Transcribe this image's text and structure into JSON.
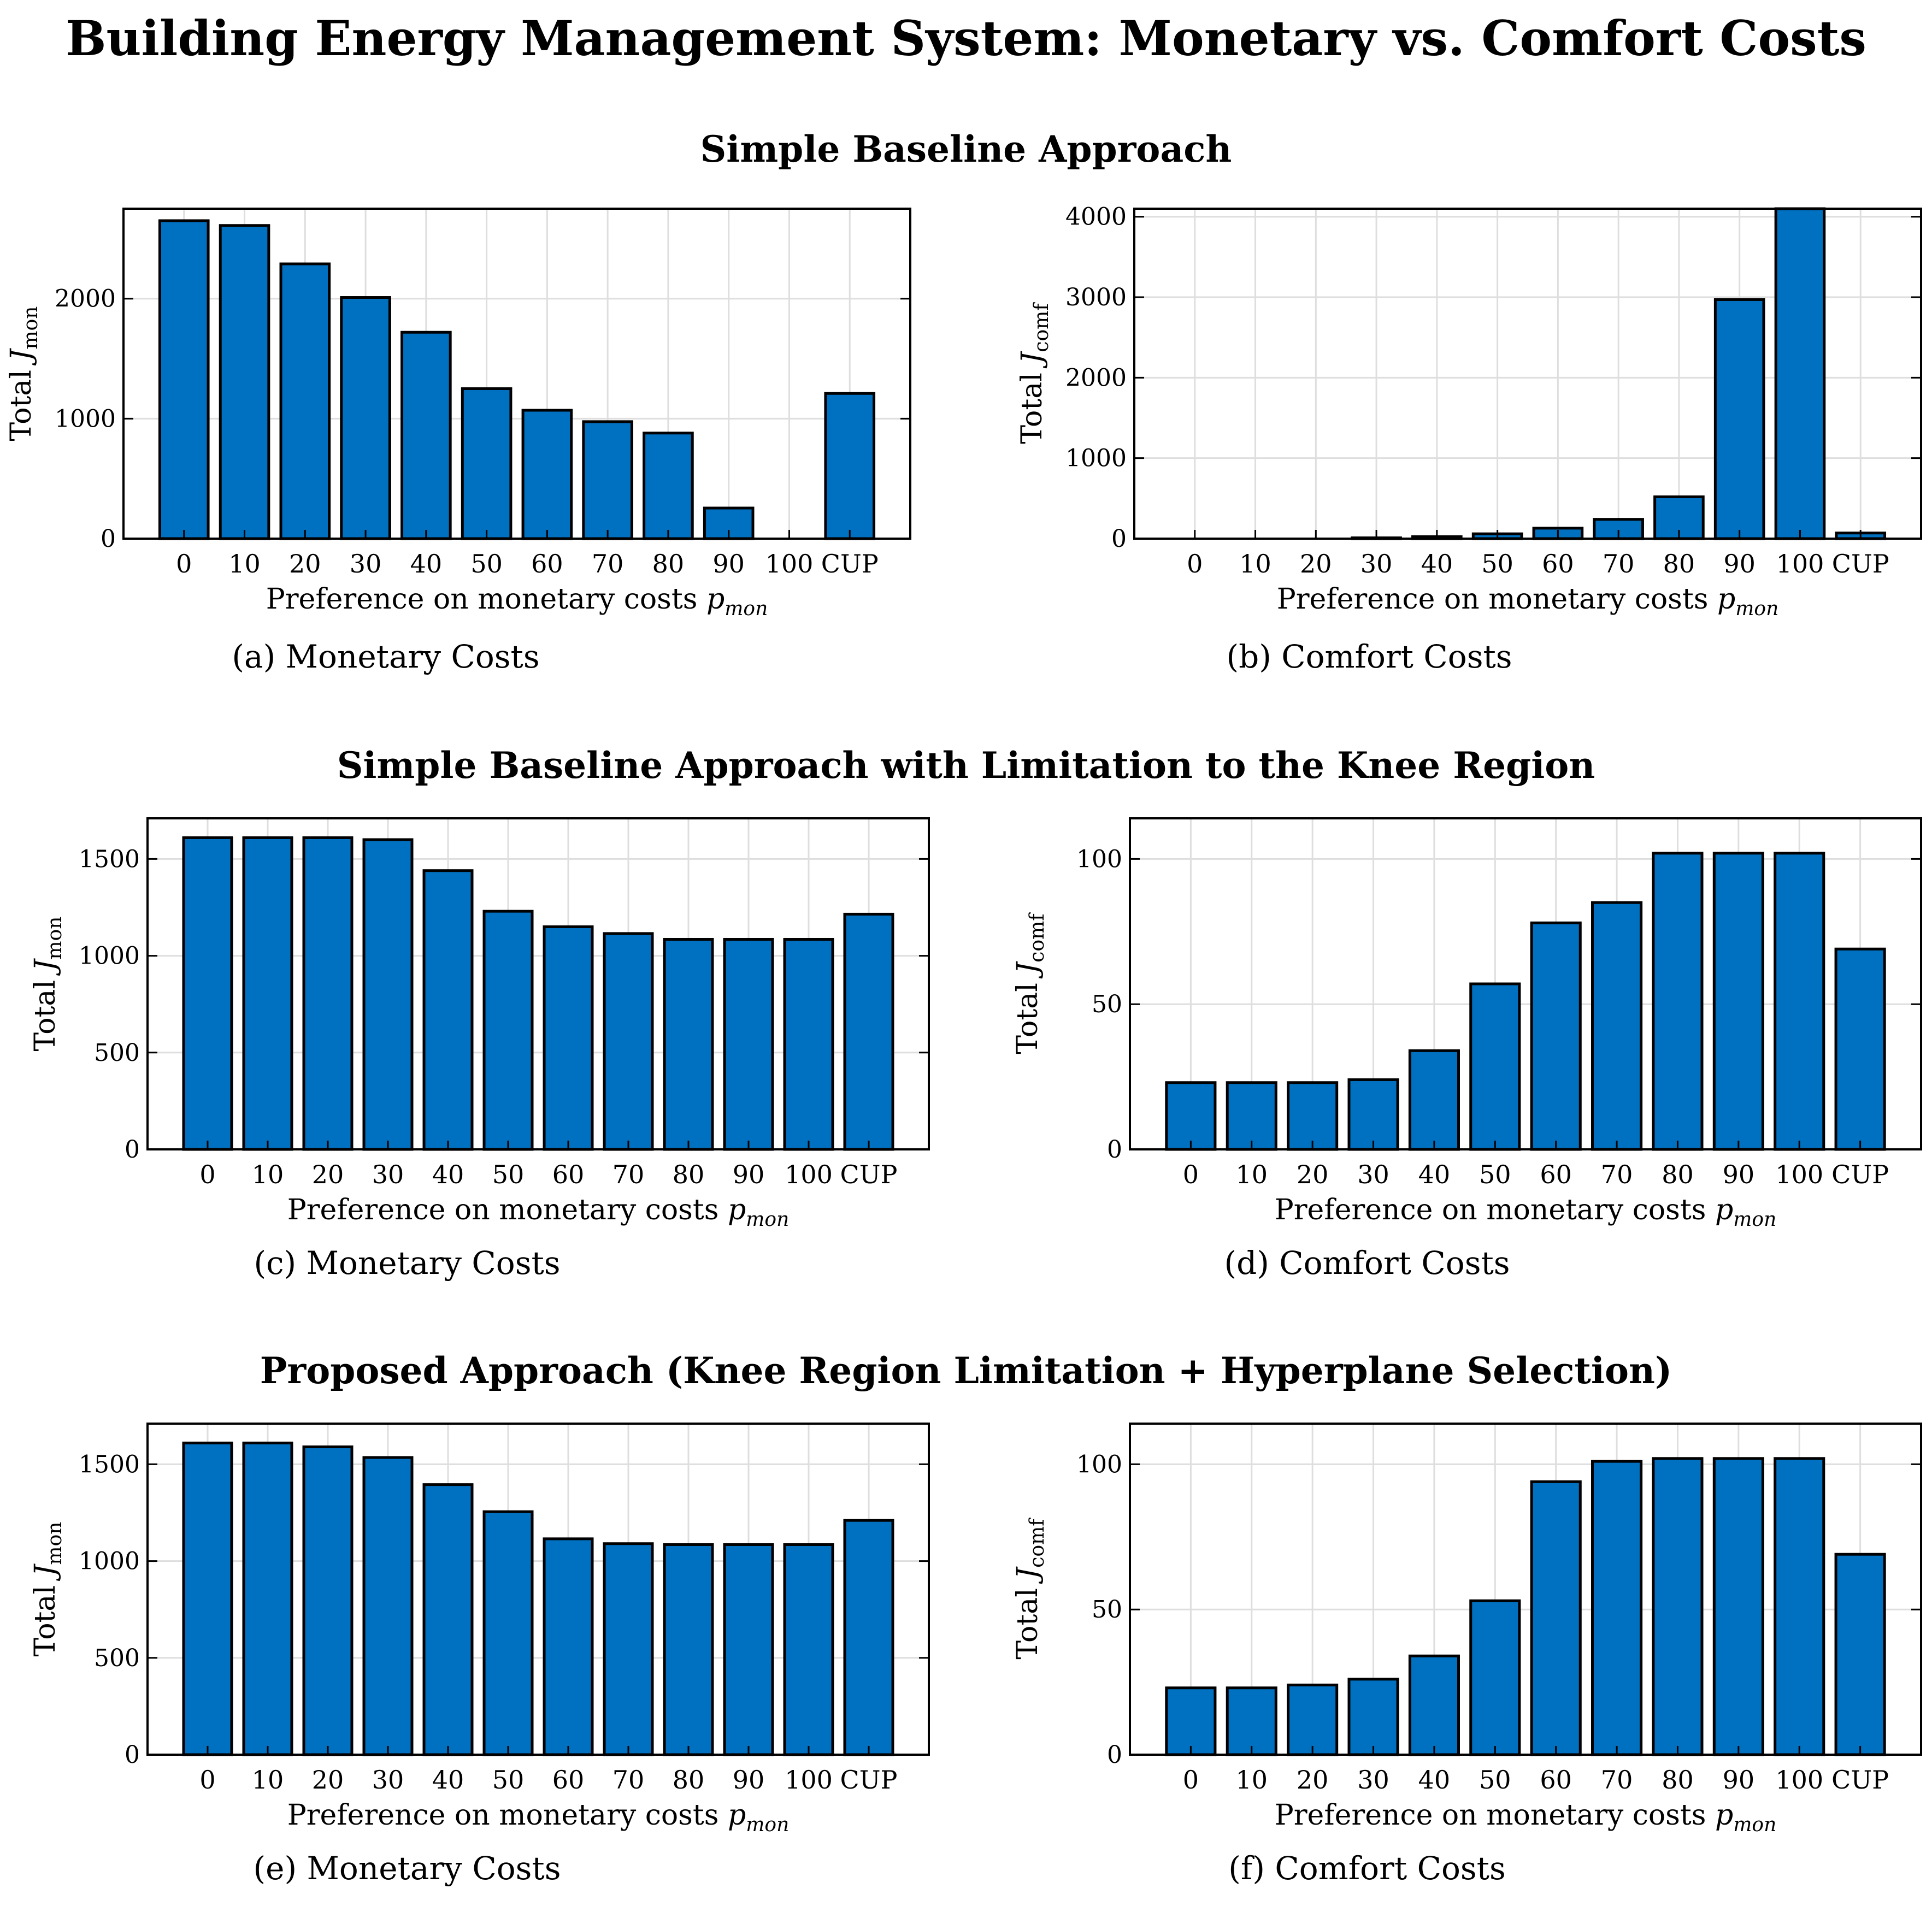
{
  "title": "Building Energy Management System: Monetary vs. Comfort Costs",
  "sections": [
    {
      "title": "Simple Baseline Approach"
    },
    {
      "title": "Simple Baseline Approach with Limitation to the Knee Region"
    },
    {
      "title": "Proposed Approach (Knee Region Limitation + Hyperplane Selection)"
    }
  ],
  "bar_color": "#0070C0",
  "chart_data": [
    {
      "type": "bar",
      "label": "(a)",
      "caption": "Monetary Costs",
      "xlabel": "Preference on monetary costs",
      "xlabel_var": "p",
      "xlabel_sub": "mon",
      "ylabel": "Total",
      "ylabel_var": "J",
      "ylabel_sub": "mon",
      "categories": [
        "0",
        "10",
        "20",
        "30",
        "40",
        "50",
        "60",
        "70",
        "80",
        "90",
        "100",
        "CUP"
      ],
      "values": [
        2650,
        2610,
        2290,
        2010,
        1720,
        1250,
        1070,
        975,
        880,
        255,
        0,
        1210
      ],
      "ylim": [
        0,
        2750
      ],
      "yticks": [
        0,
        1000,
        2000
      ],
      "grid": true
    },
    {
      "type": "bar",
      "label": "(b)",
      "caption": "Comfort Costs",
      "xlabel": "Preference on monetary costs",
      "xlabel_var": "p",
      "xlabel_sub": "mon",
      "ylabel": "Total",
      "ylabel_var": "J",
      "ylabel_sub": "comf",
      "categories": [
        "0",
        "10",
        "20",
        "30",
        "40",
        "50",
        "60",
        "70",
        "80",
        "90",
        "100",
        "CUP"
      ],
      "values": [
        0,
        0,
        0,
        10,
        25,
        60,
        130,
        240,
        520,
        2970,
        4100,
        70
      ],
      "ylim": [
        0,
        4100
      ],
      "yticks": [
        0,
        1000,
        2000,
        3000,
        4000
      ],
      "grid": true
    },
    {
      "type": "bar",
      "label": "(c)",
      "caption": "Monetary Costs",
      "xlabel": "Preference on monetary costs",
      "xlabel_var": "p",
      "xlabel_sub": "mon",
      "ylabel": "Total",
      "ylabel_var": "J",
      "ylabel_sub": "mon",
      "categories": [
        "0",
        "10",
        "20",
        "30",
        "40",
        "50",
        "60",
        "70",
        "80",
        "90",
        "100",
        "CUP"
      ],
      "values": [
        1610,
        1610,
        1610,
        1600,
        1440,
        1230,
        1150,
        1115,
        1085,
        1085,
        1085,
        1215
      ],
      "ylim": [
        0,
        1710
      ],
      "yticks": [
        0,
        500,
        1000,
        1500
      ],
      "grid": true
    },
    {
      "type": "bar",
      "label": "(d)",
      "caption": "Comfort Costs",
      "xlabel": "Preference on monetary costs",
      "xlabel_var": "p",
      "xlabel_sub": "mon",
      "ylabel": "Total",
      "ylabel_var": "J",
      "ylabel_sub": "comf",
      "categories": [
        "0",
        "10",
        "20",
        "30",
        "40",
        "50",
        "60",
        "70",
        "80",
        "90",
        "100",
        "CUP"
      ],
      "values": [
        23,
        23,
        23,
        24,
        34,
        57,
        78,
        85,
        102,
        102,
        102,
        69
      ],
      "ylim": [
        0,
        114
      ],
      "yticks": [
        0,
        50,
        100
      ],
      "grid": true
    },
    {
      "type": "bar",
      "label": "(e)",
      "caption": "Monetary Costs",
      "xlabel": "Preference on monetary costs",
      "xlabel_var": "p",
      "xlabel_sub": "mon",
      "ylabel": "Total",
      "ylabel_var": "J",
      "ylabel_sub": "mon",
      "categories": [
        "0",
        "10",
        "20",
        "30",
        "40",
        "50",
        "60",
        "70",
        "80",
        "90",
        "100",
        "CUP"
      ],
      "values": [
        1610,
        1610,
        1590,
        1535,
        1395,
        1255,
        1115,
        1090,
        1085,
        1085,
        1085,
        1210
      ],
      "ylim": [
        0,
        1710
      ],
      "yticks": [
        0,
        500,
        1000,
        1500
      ],
      "grid": true
    },
    {
      "type": "bar",
      "label": "(f)",
      "caption": "Comfort Costs",
      "xlabel": "Preference on monetary costs",
      "xlabel_var": "p",
      "xlabel_sub": "mon",
      "ylabel": "Total",
      "ylabel_var": "J",
      "ylabel_sub": "comf",
      "categories": [
        "0",
        "10",
        "20",
        "30",
        "40",
        "50",
        "60",
        "70",
        "80",
        "90",
        "100",
        "CUP"
      ],
      "values": [
        23,
        23,
        24,
        26,
        34,
        53,
        94,
        101,
        102,
        102,
        102,
        69
      ],
      "ylim": [
        0,
        114
      ],
      "yticks": [
        0,
        50,
        100
      ],
      "grid": true
    }
  ]
}
